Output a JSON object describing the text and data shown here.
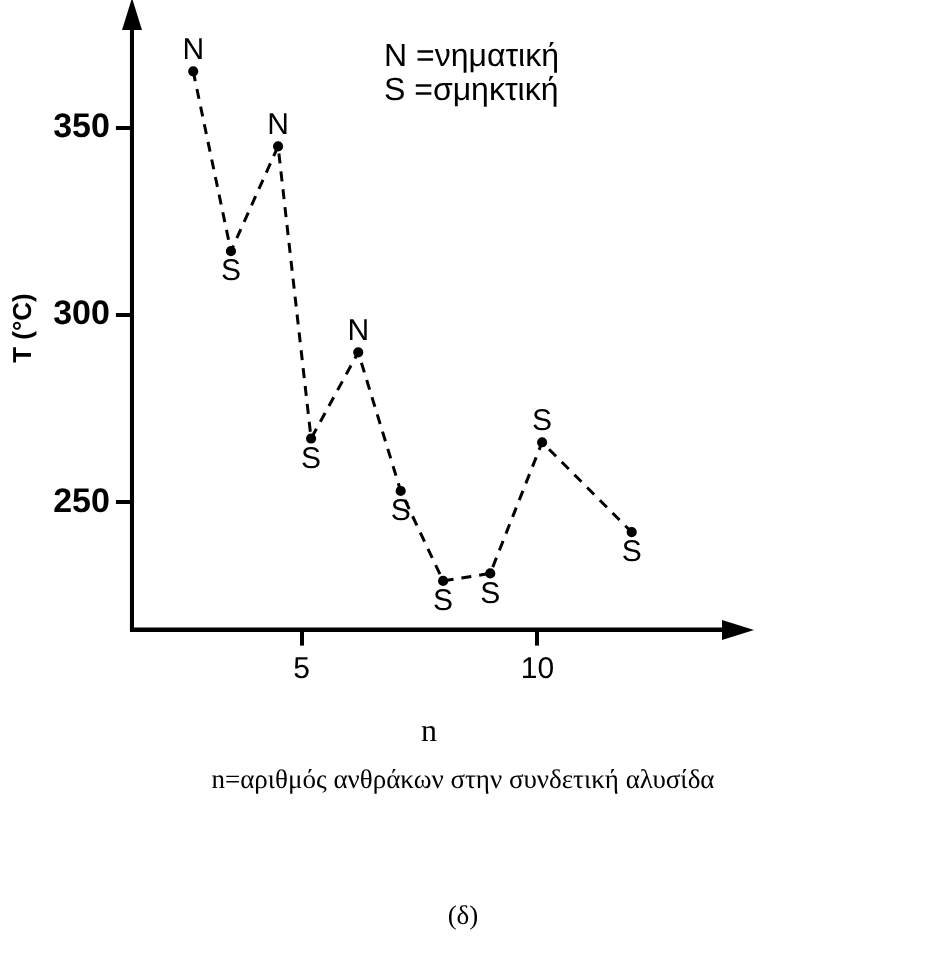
{
  "chart_data": {
    "type": "line",
    "xlabel": "n",
    "ylabel": "T (°C)",
    "x": [
      2.7,
      3.5,
      4.5,
      5.2,
      6.2,
      7.1,
      8,
      9,
      10.1,
      12
    ],
    "series": [
      {
        "color": "#000000",
        "values": [
          365,
          317,
          345,
          267,
          290,
          253,
          229,
          231,
          266,
          242
        ]
      }
    ],
    "xlim": [
      1.4,
      14
    ],
    "ylim": [
      216,
      377
    ],
    "xticks": [
      5,
      10
    ],
    "yticks": [
      250,
      300,
      350
    ],
    "grid": false,
    "legend": false,
    "marker": "circle",
    "line_style": "dashed",
    "annotations": [
      {
        "text": "N",
        "x": 2.7,
        "y": 365
      },
      {
        "text": "S",
        "x": 3.5,
        "y": 317
      },
      {
        "text": "N",
        "x": 4.5,
        "y": 345
      },
      {
        "text": "S",
        "x": 5.2,
        "y": 267
      },
      {
        "text": "N",
        "x": 6.2,
        "y": 290
      },
      {
        "text": "S",
        "x": 7.1,
        "y": 253
      },
      {
        "text": "S",
        "x": 8,
        "y": 229
      },
      {
        "text": "S",
        "x": 9,
        "y": 231
      },
      {
        "text": "S",
        "x": 10.1,
        "y": 266
      },
      {
        "text": "S",
        "x": 12,
        "y": 242
      },
      "N =νηματική",
      "S =σμηκτική",
      "n=αριθμός ανθράκων στην συνδετική αλυσίδα",
      "(δ)"
    ]
  }
}
